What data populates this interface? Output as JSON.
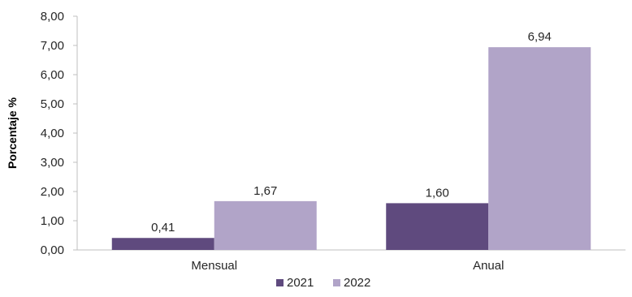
{
  "chart_data": {
    "type": "bar",
    "categories": [
      "Mensual",
      "Anual"
    ],
    "series": [
      {
        "name": "2021",
        "values": [
          0.41,
          1.6
        ],
        "labels": [
          "0,41",
          "1,60"
        ],
        "color": "#5f4a7e"
      },
      {
        "name": "2022",
        "values": [
          1.67,
          6.94
        ],
        "labels": [
          "1,67",
          "6,94"
        ],
        "color": "#b1a4c8"
      }
    ],
    "ylabel": "Porcentaje %",
    "xlabel": "",
    "ylim": [
      0,
      8
    ],
    "yticks": [
      "0,00",
      "1,00",
      "2,00",
      "3,00",
      "4,00",
      "5,00",
      "6,00",
      "7,00",
      "8,00"
    ],
    "legend_position": "bottom",
    "grid": false
  }
}
